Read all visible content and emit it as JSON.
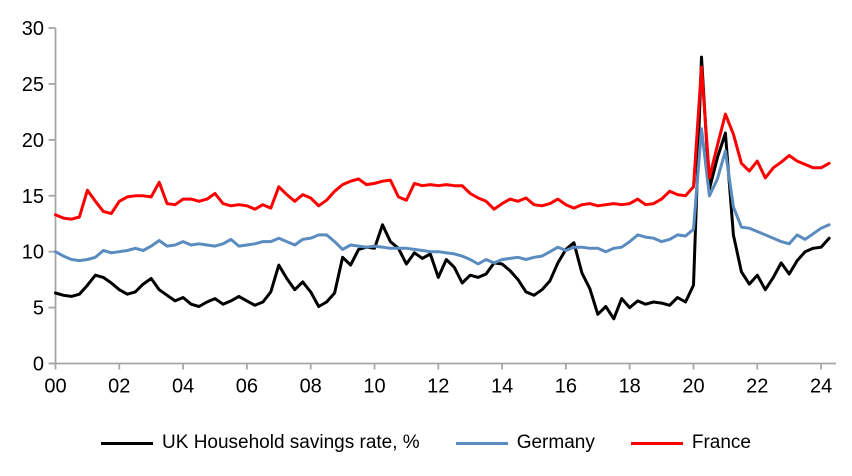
{
  "chart_data": {
    "type": "line",
    "title": "",
    "xlabel": "",
    "ylabel": "",
    "x_start": "2000Q1",
    "x_frequency": "quarterly",
    "x_tick_labels": [
      "00",
      "02",
      "04",
      "06",
      "08",
      "10",
      "12",
      "14",
      "16",
      "18",
      "20",
      "22",
      "24"
    ],
    "x_tick_years": [
      0,
      2,
      4,
      6,
      8,
      10,
      12,
      14,
      16,
      18,
      20,
      22,
      24
    ],
    "y_ticks": [
      0,
      5,
      10,
      15,
      20,
      25,
      30
    ],
    "ylim": [
      0,
      30
    ],
    "grid": false,
    "legend_position": "bottom",
    "axis_color": "#a6a6a6",
    "series": [
      {
        "name": "UK Household savings rate, %",
        "color": "#000000",
        "values": [
          6.3,
          6.1,
          6.0,
          6.2,
          7.0,
          7.9,
          7.7,
          7.2,
          6.6,
          6.2,
          6.4,
          7.1,
          7.6,
          6.6,
          6.1,
          5.6,
          5.9,
          5.3,
          5.1,
          5.5,
          5.8,
          5.3,
          5.6,
          6.0,
          5.6,
          5.2,
          5.5,
          6.4,
          8.8,
          7.6,
          6.6,
          7.3,
          6.4,
          5.1,
          5.5,
          6.3,
          9.5,
          8.8,
          10.2,
          10.4,
          10.3,
          12.4,
          10.9,
          10.3,
          8.9,
          9.9,
          9.4,
          9.8,
          7.7,
          9.3,
          8.6,
          7.2,
          7.9,
          7.7,
          8.0,
          9.0,
          8.9,
          8.3,
          7.5,
          6.4,
          6.1,
          6.6,
          7.4,
          9.0,
          10.2,
          10.8,
          8.1,
          6.7,
          4.4,
          5.1,
          4.0,
          5.8,
          5.0,
          5.6,
          5.3,
          5.5,
          5.4,
          5.2,
          5.9,
          5.5,
          7.0,
          27.4,
          15.6,
          18.4,
          20.6,
          11.5,
          8.2,
          7.1,
          7.9,
          6.6,
          7.7,
          9.0,
          8.0,
          9.2,
          10.0,
          10.3,
          10.4,
          11.2
        ]
      },
      {
        "name": "Germany",
        "color": "#5b8cc0",
        "values": [
          10.0,
          9.6,
          9.3,
          9.2,
          9.3,
          9.5,
          10.1,
          9.9,
          10.0,
          10.1,
          10.3,
          10.1,
          10.5,
          11.0,
          10.5,
          10.6,
          10.9,
          10.6,
          10.7,
          10.6,
          10.5,
          10.7,
          11.1,
          10.5,
          10.6,
          10.7,
          10.9,
          10.9,
          11.2,
          10.9,
          10.6,
          11.1,
          11.2,
          11.5,
          11.5,
          10.9,
          10.2,
          10.6,
          10.5,
          10.4,
          10.5,
          10.4,
          10.3,
          10.3,
          10.3,
          10.2,
          10.1,
          10.0,
          10.0,
          9.9,
          9.8,
          9.6,
          9.3,
          8.9,
          9.3,
          9.0,
          9.3,
          9.4,
          9.5,
          9.3,
          9.5,
          9.6,
          10.0,
          10.4,
          10.1,
          10.4,
          10.4,
          10.3,
          10.3,
          10.0,
          10.3,
          10.4,
          10.9,
          11.5,
          11.3,
          11.2,
          10.9,
          11.1,
          11.5,
          11.4,
          12.0,
          21.0,
          15.0,
          16.5,
          19.0,
          14.0,
          12.2,
          12.1,
          11.8,
          11.5,
          11.2,
          10.9,
          10.7,
          11.5,
          11.1,
          11.6,
          12.1,
          12.4
        ]
      },
      {
        "name": "France",
        "color": "#fe0000",
        "values": [
          13.3,
          13.0,
          12.9,
          13.1,
          15.5,
          14.5,
          13.6,
          13.4,
          14.5,
          14.9,
          15.0,
          15.0,
          14.9,
          16.2,
          14.3,
          14.2,
          14.7,
          14.7,
          14.5,
          14.7,
          15.2,
          14.3,
          14.1,
          14.2,
          14.1,
          13.8,
          14.2,
          13.9,
          15.8,
          15.1,
          14.5,
          15.1,
          14.8,
          14.1,
          14.6,
          15.4,
          16.0,
          16.3,
          16.5,
          16.0,
          16.1,
          16.3,
          16.4,
          14.9,
          14.6,
          16.1,
          15.9,
          16.0,
          15.9,
          16.0,
          15.9,
          15.9,
          15.2,
          14.8,
          14.5,
          13.8,
          14.3,
          14.7,
          14.5,
          14.8,
          14.2,
          14.1,
          14.3,
          14.7,
          14.2,
          13.9,
          14.2,
          14.3,
          14.1,
          14.2,
          14.3,
          14.2,
          14.3,
          14.7,
          14.2,
          14.3,
          14.7,
          15.4,
          15.1,
          15.0,
          15.8,
          26.5,
          16.6,
          19.5,
          22.3,
          20.5,
          17.9,
          17.2,
          18.1,
          16.6,
          17.5,
          18.0,
          18.6,
          18.1,
          17.8,
          17.5,
          17.5,
          17.9
        ]
      }
    ]
  }
}
